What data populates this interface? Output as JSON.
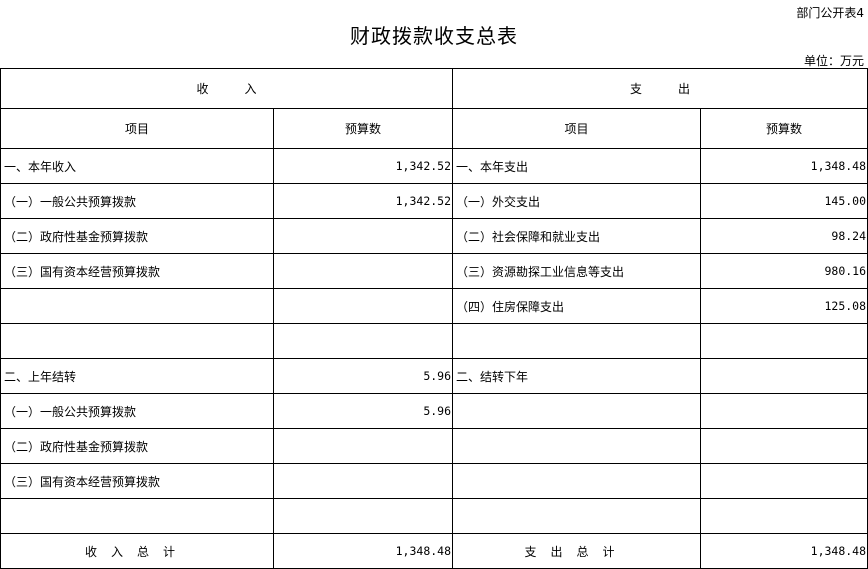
{
  "form_no": "部门公开表4",
  "title": "财政拨款收支总表",
  "unit": "单位：万元",
  "headers": {
    "income": "收　　　入",
    "expense": "支　　　出",
    "item": "项目",
    "budget": "预算数"
  },
  "rows": [
    {
      "in_item": "一、本年收入",
      "in_val": "1,342.52",
      "out_item": "一、本年支出",
      "out_val": "1,348.48"
    },
    {
      "in_item": "（一）一般公共预算拨款",
      "in_val": "1,342.52",
      "out_item": "（一）外交支出",
      "out_val": "145.00"
    },
    {
      "in_item": "（二）政府性基金预算拨款",
      "in_val": "",
      "out_item": "（二）社会保障和就业支出",
      "out_val": "98.24"
    },
    {
      "in_item": "（三）国有资本经营预算拨款",
      "in_val": "",
      "out_item": "（三）资源勘探工业信息等支出",
      "out_val": "980.16"
    },
    {
      "in_item": "",
      "in_val": "",
      "out_item": "（四）住房保障支出",
      "out_val": "125.08"
    },
    {
      "in_item": "",
      "in_val": "",
      "out_item": "",
      "out_val": ""
    },
    {
      "in_item": "二、上年结转",
      "in_val": "5.96",
      "out_item": "二、结转下年",
      "out_val": ""
    },
    {
      "in_item": "（一）一般公共预算拨款",
      "in_val": "5.96",
      "out_item": "",
      "out_val": ""
    },
    {
      "in_item": "（二）政府性基金预算拨款",
      "in_val": "",
      "out_item": "",
      "out_val": ""
    },
    {
      "in_item": "（三）国有资本经营预算拨款",
      "in_val": "",
      "out_item": "",
      "out_val": ""
    },
    {
      "in_item": "",
      "in_val": "",
      "out_item": "",
      "out_val": ""
    }
  ],
  "totals": {
    "in_label": "收入总计",
    "in_val": "1,348.48",
    "out_label": "支出总计",
    "out_val": "1,348.48"
  }
}
